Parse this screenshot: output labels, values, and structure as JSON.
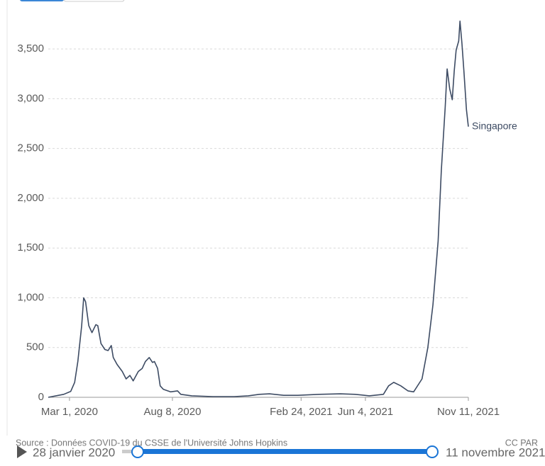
{
  "chart_data": {
    "type": "line",
    "x": [
      "2020-01-28",
      "2020-02-21",
      "2020-03-03",
      "2020-03-09",
      "2020-03-14",
      "2020-03-20",
      "2020-03-23",
      "2020-03-26",
      "2020-03-31",
      "2020-04-05",
      "2020-04-11",
      "2020-04-14",
      "2020-04-19",
      "2020-04-25",
      "2020-04-30",
      "2020-05-05",
      "2020-05-08",
      "2020-05-14",
      "2020-05-22",
      "2020-05-28",
      "2020-06-03",
      "2020-06-08",
      "2020-06-16",
      "2020-06-22",
      "2020-06-27",
      "2020-07-03",
      "2020-07-08",
      "2020-07-11",
      "2020-07-16",
      "2020-07-20",
      "2020-07-25",
      "2020-08-05",
      "2020-08-16",
      "2020-08-21",
      "2020-09-07",
      "2020-10-10",
      "2020-11-12",
      "2020-12-04",
      "2020-12-21",
      "2021-01-06",
      "2021-01-28",
      "2021-02-19",
      "2021-03-24",
      "2021-04-26",
      "2021-05-19",
      "2021-06-10",
      "2021-07-02",
      "2021-07-10",
      "2021-07-18",
      "2021-07-29",
      "2021-08-09",
      "2021-08-18",
      "2021-08-31",
      "2021-09-09",
      "2021-09-17",
      "2021-09-25",
      "2021-09-30",
      "2021-10-06",
      "2021-10-09",
      "2021-10-13",
      "2021-10-17",
      "2021-10-20",
      "2021-10-23",
      "2021-10-27",
      "2021-10-29",
      "2021-11-01",
      "2021-11-04",
      "2021-11-08",
      "2021-11-11"
    ],
    "series": [
      {
        "name": "Singapore",
        "color": "#3d4b63",
        "values": [
          0,
          30,
          60,
          150,
          360,
          720,
          1000,
          960,
          720,
          650,
          730,
          720,
          540,
          480,
          470,
          520,
          400,
          330,
          260,
          185,
          220,
          165,
          260,
          290,
          360,
          400,
          350,
          360,
          290,
          115,
          80,
          55,
          65,
          30,
          15,
          7,
          7,
          15,
          30,
          35,
          20,
          20,
          30,
          35,
          30,
          15,
          30,
          115,
          150,
          115,
          65,
          55,
          185,
          500,
          930,
          1570,
          2280,
          2920,
          3300,
          3100,
          2990,
          3280,
          3490,
          3580,
          3780,
          3560,
          3280,
          2890,
          2720
        ]
      }
    ],
    "xlim": [
      "2020-01-28",
      "2021-11-11"
    ],
    "xticks": [
      {
        "value": "2020-03-01",
        "label": "Mar 1, 2020"
      },
      {
        "value": "2020-08-08",
        "label": "Aug 8, 2020"
      },
      {
        "value": "2021-02-24",
        "label": "Feb 24, 2021"
      },
      {
        "value": "2021-06-04",
        "label": "Jun 4, 2021"
      },
      {
        "value": "2021-11-11",
        "label": "Nov 11, 2021"
      }
    ],
    "ylim": [
      0,
      3800
    ],
    "yticks": [
      0,
      500,
      {
        "value": 1000,
        "label": "1,000"
      },
      {
        "value": 1500,
        "label": "1,500"
      },
      {
        "value": 2000,
        "label": "2,000"
      },
      {
        "value": 2500,
        "label": "2,500"
      },
      {
        "value": 3000,
        "label": "3,000"
      },
      {
        "value": 3500,
        "label": "3,500"
      }
    ],
    "grid": true,
    "source": "Source : Données COVID-19 du CSSE de l'Université Johns Hopkins",
    "license": "CC PAR"
  },
  "timeline": {
    "start": "28 janvier 2020",
    "end": "11 novembre 2021"
  }
}
